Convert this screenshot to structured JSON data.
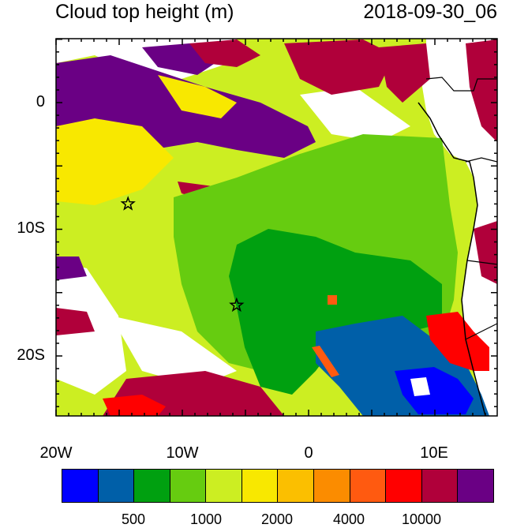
{
  "header": {
    "title": "Cloud top height (m)",
    "datetime": "2018-09-30_06"
  },
  "map": {
    "lat_labels": [
      "0",
      "10S",
      "20S"
    ],
    "lon_labels": [
      "20W",
      "10W",
      "0",
      "10E"
    ],
    "markers": [
      {
        "name": "star",
        "lon": -14.3,
        "lat": -8.0
      },
      {
        "name": "star",
        "lon": -5.7,
        "lat": -16.0
      }
    ],
    "colors": {
      "land": "#ffffff",
      "border": "#000000"
    }
  },
  "colorbar": {
    "colors": [
      "#0000ff",
      "#005fa8",
      "#00a010",
      "#66cc10",
      "#ccee22",
      "#f8e800",
      "#fbbf00",
      "#fb8c00",
      "#ff5a10",
      "#ff0000",
      "#b0003a",
      "#6a0084"
    ],
    "labels": [
      "500",
      "1000",
      "2000",
      "4000",
      "10000"
    ]
  }
}
